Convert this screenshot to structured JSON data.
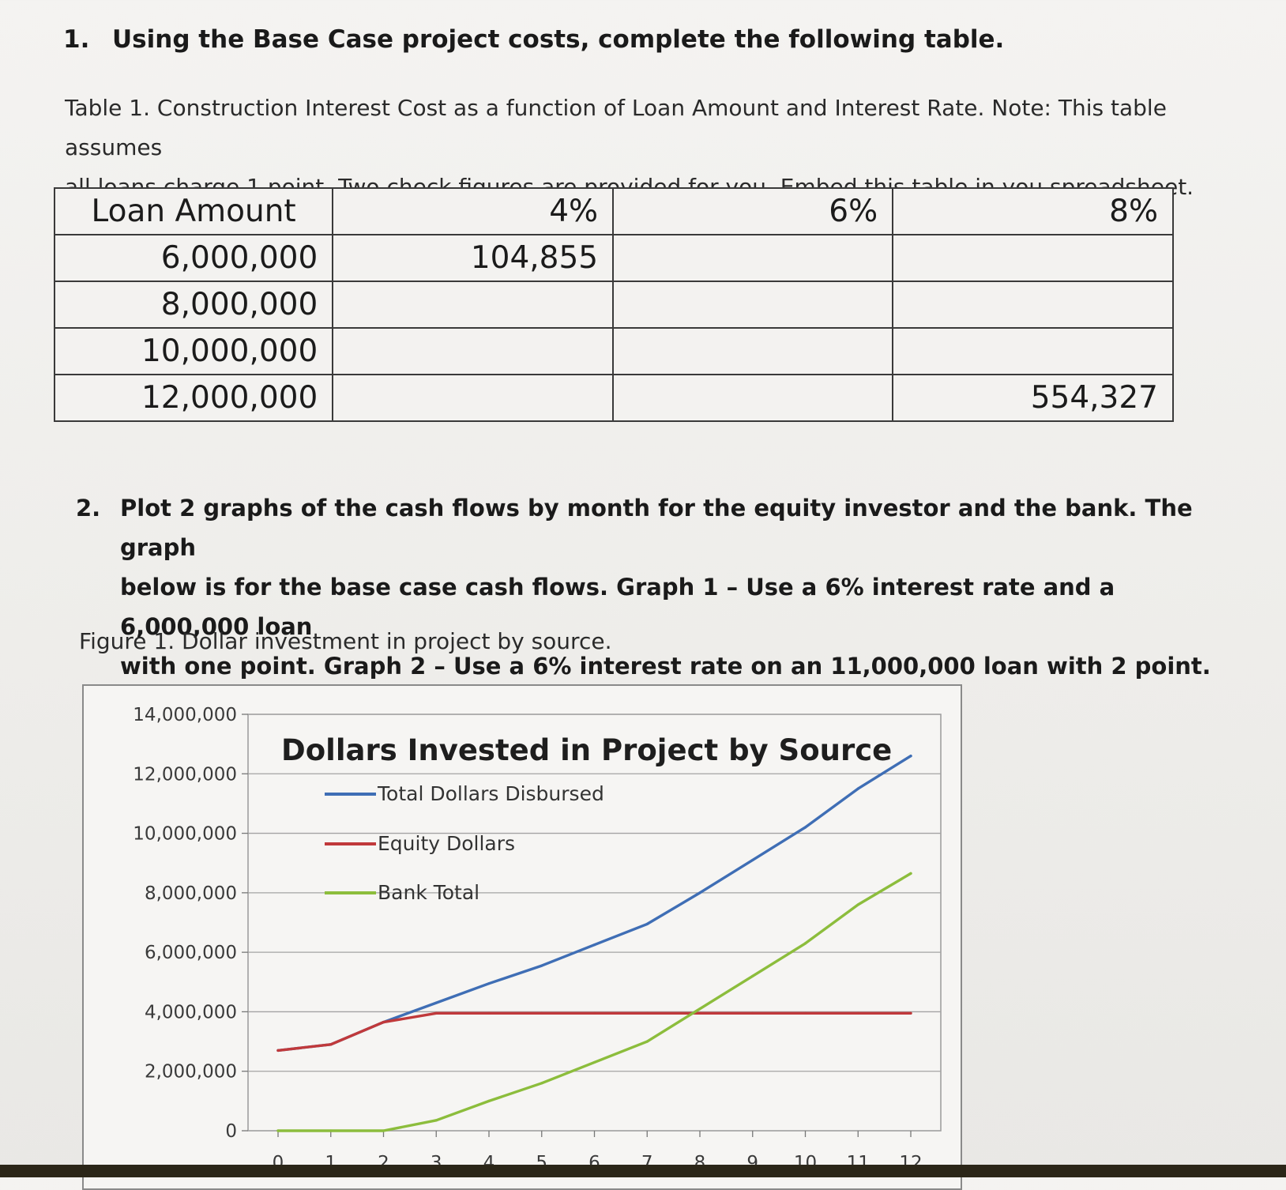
{
  "question1": {
    "number": "1.",
    "title": "Using the Base Case project costs, complete the following table."
  },
  "table1": {
    "caption_line1": "Table 1. Construction Interest Cost as a function of Loan Amount and Interest Rate.  Note:  This table assumes",
    "caption_line2": "all loans charge 1 point.  Two check figures are provided for you.  Embed this table in you spreadsheet.",
    "header": [
      "Loan Amount",
      "4%",
      "6%",
      "8%"
    ],
    "rows": [
      [
        "6,000,000",
        "104,855",
        "",
        ""
      ],
      [
        "8,000,000",
        "",
        "",
        ""
      ],
      [
        "10,000,000",
        "",
        "",
        ""
      ],
      [
        "12,000,000",
        "",
        "",
        "554,327"
      ]
    ]
  },
  "question2": {
    "number": "2.",
    "line1": "Plot 2 graphs of the cash flows by month for the equity investor and the bank.  The graph",
    "line2": "below is for the base case cash flows.  Graph 1 – Use a 6% interest rate and a 6,000,000 loan",
    "line3": "with one point.  Graph 2 – Use a 6% interest rate on an 11,000,000 loan with 2 point."
  },
  "figure1": {
    "caption": "Figure 1.  Dollar investment in project by source."
  },
  "chart_data": {
    "type": "line",
    "title": "Dollars Invested in Project by Source",
    "xlabel": "",
    "ylabel": "",
    "x": [
      0,
      1,
      2,
      3,
      4,
      5,
      6,
      7,
      8,
      9,
      10,
      11,
      12
    ],
    "ylim": [
      0,
      14000000
    ],
    "yticks": [
      0,
      2000000,
      4000000,
      6000000,
      8000000,
      10000000,
      12000000,
      14000000
    ],
    "ytick_labels": [
      "0",
      "2,000,000",
      "4,000,000",
      "6,000,000",
      "8,000,000",
      "10,000,000",
      "12,000,000",
      "14,000,000"
    ],
    "xtick_labels": [
      "0",
      "1",
      "2",
      "3",
      "4",
      "5",
      "6",
      "7",
      "8",
      "9",
      "10",
      "11",
      "12"
    ],
    "grid": true,
    "legend_position": "top-left inside plot",
    "series": [
      {
        "name": "Total Dollars Disbursed",
        "color": "#3f6eb5",
        "values": [
          2700000,
          2900000,
          3650000,
          4300000,
          4950000,
          5550000,
          6250000,
          6950000,
          8000000,
          9100000,
          10200000,
          11500000,
          12600000
        ]
      },
      {
        "name": "Equity Dollars",
        "color": "#c0393b",
        "values": [
          2700000,
          2900000,
          3650000,
          3950000,
          3950000,
          3950000,
          3950000,
          3950000,
          3950000,
          3950000,
          3950000,
          3950000,
          3950000
        ]
      },
      {
        "name": "Bank Total",
        "color": "#8cbd3c",
        "values": [
          0,
          0,
          0,
          350000,
          1000000,
          1600000,
          2300000,
          3000000,
          4100000,
          5200000,
          6300000,
          7600000,
          8650000
        ]
      }
    ]
  }
}
